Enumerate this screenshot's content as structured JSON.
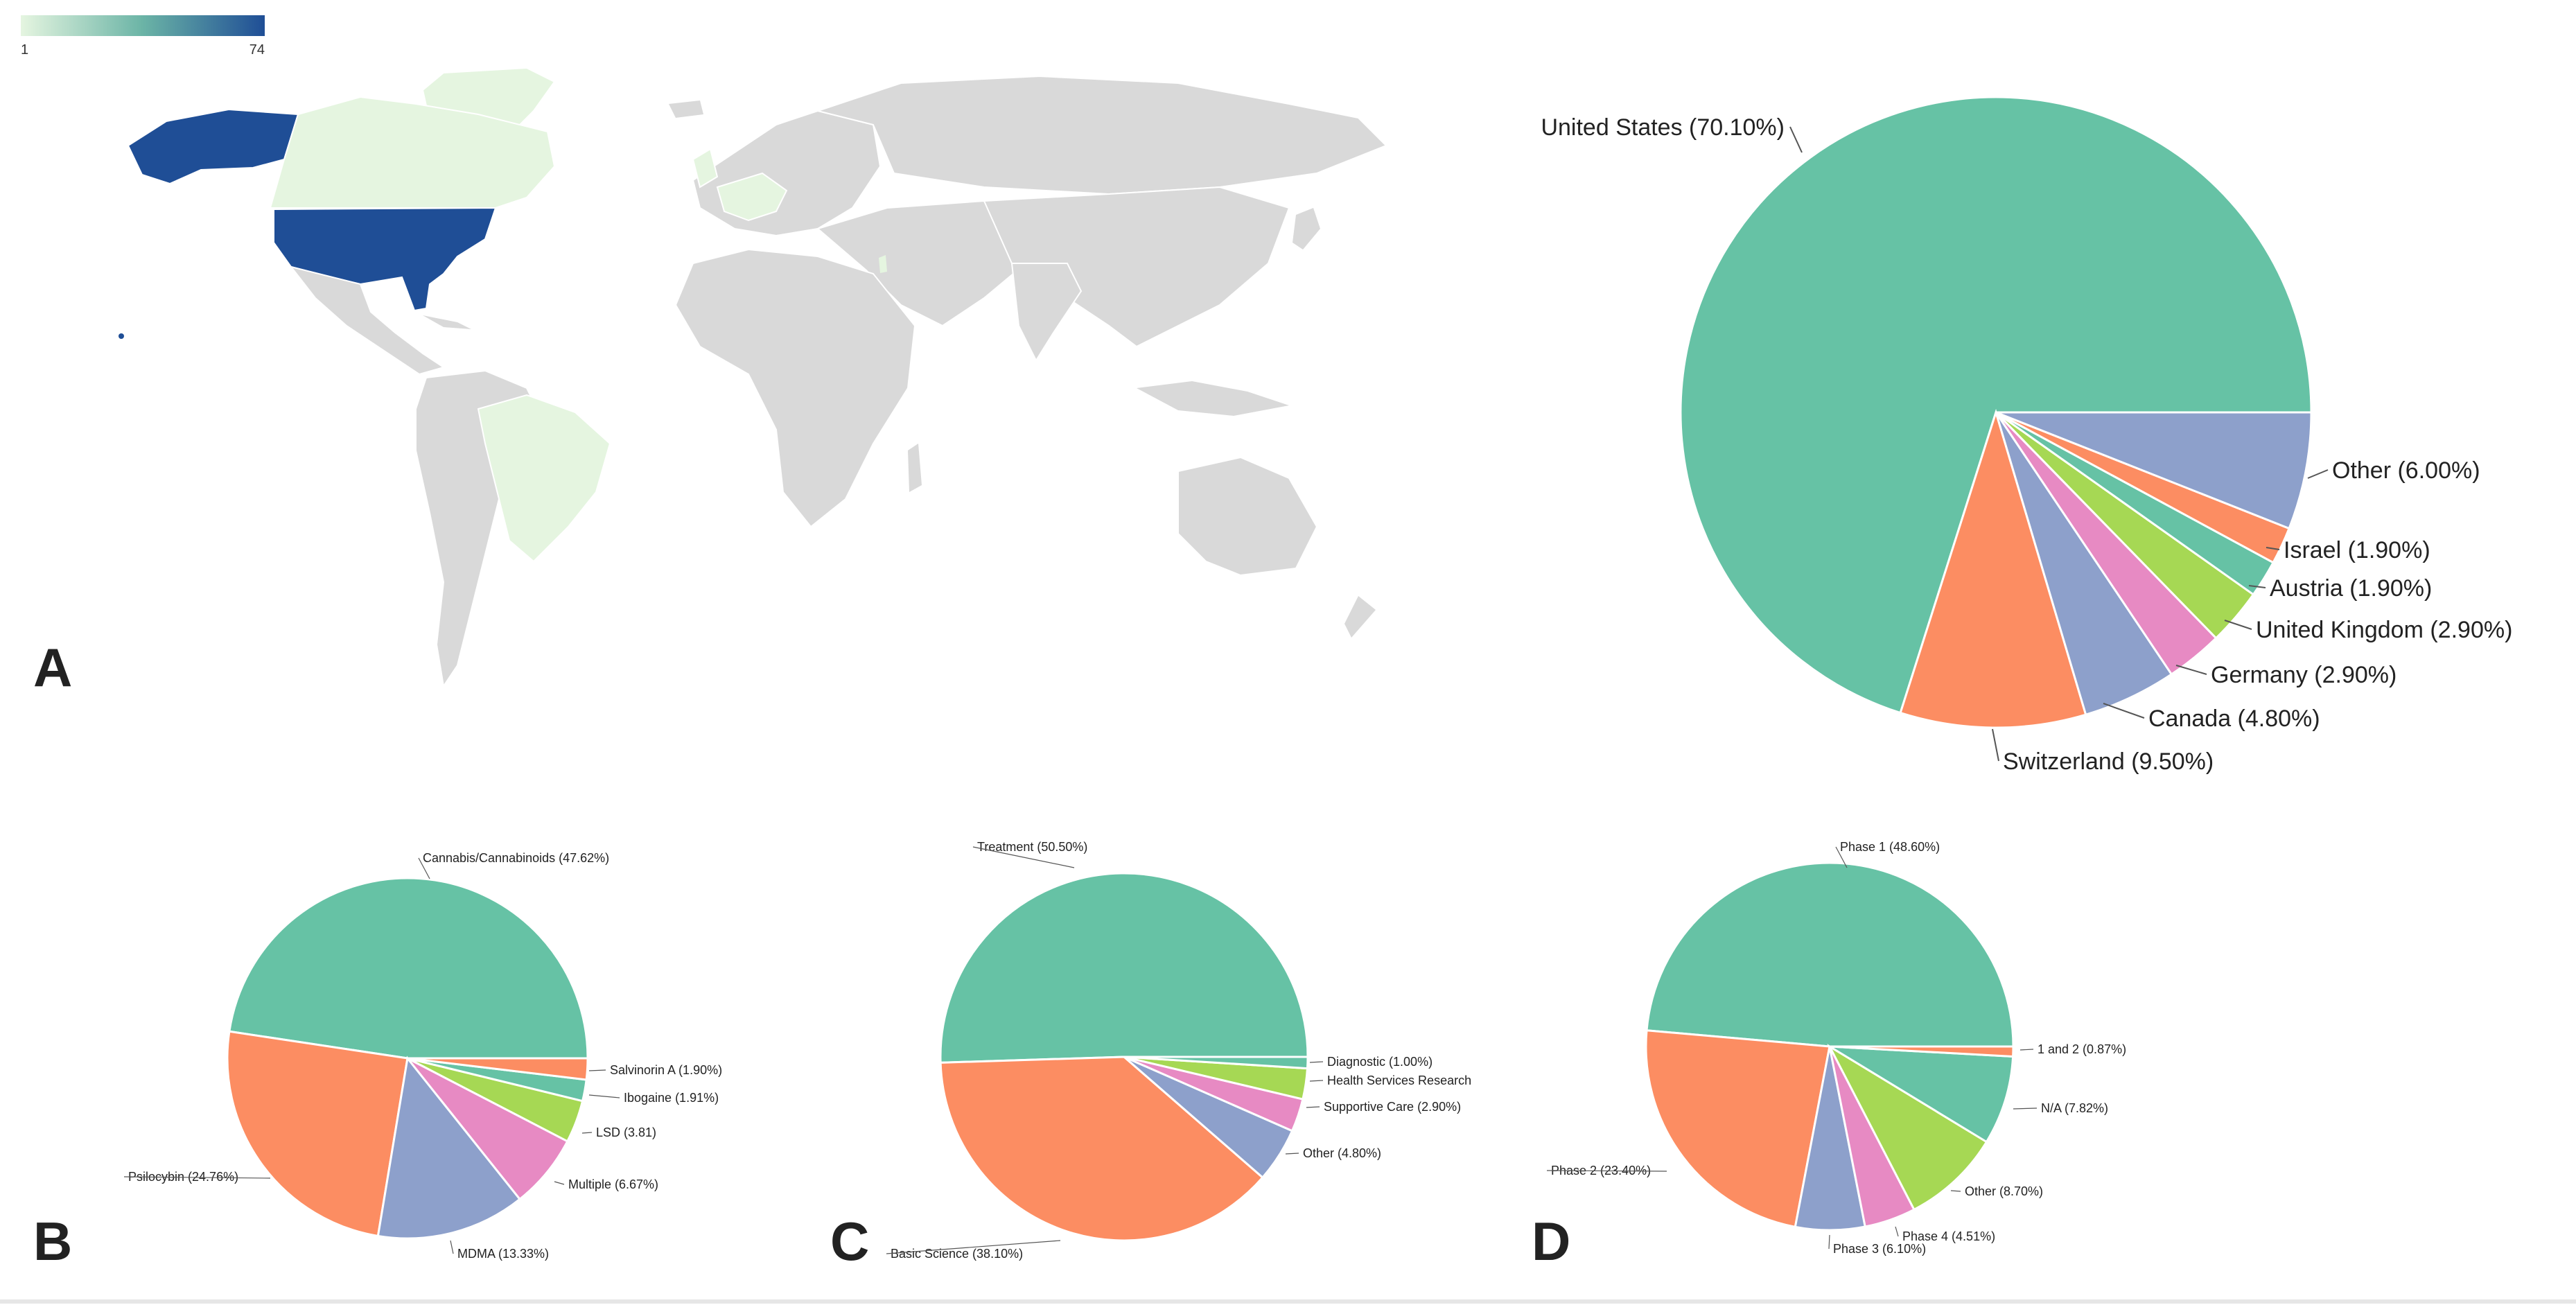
{
  "colors": {
    "teal": "#66c2a5",
    "orange": "#fc8d62",
    "blue": "#8da0cb",
    "pink": "#e78ac3",
    "green": "#a6d854",
    "land": "#d9d9d9",
    "map_low": "#e5f5e0",
    "map_high": "#1f4e96"
  },
  "map": {
    "colorbar_min": "1",
    "colorbar_max": "74",
    "panel_label": "A"
  },
  "chart_data": [
    {
      "id": "A",
      "type": "pie",
      "panel_label": "",
      "title": "",
      "slices": [
        {
          "label": "United States (70.10%)",
          "value": 70.1,
          "color": "#66c2a5"
        },
        {
          "label": "Switzerland (9.50%)",
          "value": 9.5,
          "color": "#fc8d62"
        },
        {
          "label": "Canada (4.80%)",
          "value": 4.8,
          "color": "#8da0cb"
        },
        {
          "label": "Germany (2.90%)",
          "value": 2.9,
          "color": "#e78ac3"
        },
        {
          "label": "United Kingdom (2.90%)",
          "value": 2.9,
          "color": "#a6d854"
        },
        {
          "label": "Austria (1.90%)",
          "value": 1.9,
          "color": "#66c2a5"
        },
        {
          "label": "Israel (1.90%)",
          "value": 1.9,
          "color": "#fc8d62"
        },
        {
          "label": "Other (6.00%)",
          "value": 6.0,
          "color": "#8da0cb"
        }
      ]
    },
    {
      "id": "B",
      "type": "pie",
      "panel_label": "B",
      "title": "",
      "slices": [
        {
          "label": "Cannabis/Cannabinoids (47.62%)",
          "value": 47.62,
          "color": "#66c2a5"
        },
        {
          "label": "Psilocybin (24.76%)",
          "value": 24.76,
          "color": "#fc8d62"
        },
        {
          "label": "MDMA (13.33%)",
          "value": 13.33,
          "color": "#8da0cb"
        },
        {
          "label": "Multiple (6.67%)",
          "value": 6.67,
          "color": "#e78ac3"
        },
        {
          "label": "LSD (3.81)",
          "value": 3.81,
          "color": "#a6d854"
        },
        {
          "label": "Ibogaine (1.91%)",
          "value": 1.91,
          "color": "#66c2a5"
        },
        {
          "label": "Salvinorin A (1.90%)",
          "value": 1.9,
          "color": "#fc8d62"
        }
      ]
    },
    {
      "id": "C",
      "type": "pie",
      "panel_label": "C",
      "title": "",
      "slices": [
        {
          "label": "Treatment (50.50%)",
          "value": 50.5,
          "color": "#66c2a5"
        },
        {
          "label": "Basic Science (38.10%)",
          "value": 38.1,
          "color": "#fc8d62"
        },
        {
          "label": "Other (4.80%)",
          "value": 4.8,
          "color": "#8da0cb"
        },
        {
          "label": "Supportive Care (2.90%)",
          "value": 2.9,
          "color": "#e78ac3"
        },
        {
          "label": "Health Services Research",
          "value": 2.7,
          "color": "#a6d854"
        },
        {
          "label": "Diagnostic (1.00%)",
          "value": 1.0,
          "color": "#66c2a5"
        }
      ]
    },
    {
      "id": "D",
      "type": "pie",
      "panel_label": "D",
      "title": "",
      "slices": [
        {
          "label": "Phase 1 (48.60%)",
          "value": 48.6,
          "color": "#66c2a5"
        },
        {
          "label": "Phase 2 (23.40%)",
          "value": 23.4,
          "color": "#fc8d62"
        },
        {
          "label": "Phase 3 (6.10%)",
          "value": 6.1,
          "color": "#8da0cb"
        },
        {
          "label": "Phase 4 (4.51%)",
          "value": 4.51,
          "color": "#e78ac3"
        },
        {
          "label": "Other (8.70%)",
          "value": 8.7,
          "color": "#a6d854"
        },
        {
          "label": "N/A (7.82%)",
          "value": 7.82,
          "color": "#66c2a5"
        },
        {
          "label": "1 and 2 (0.87%)",
          "value": 0.87,
          "color": "#fc8d62"
        }
      ]
    }
  ]
}
